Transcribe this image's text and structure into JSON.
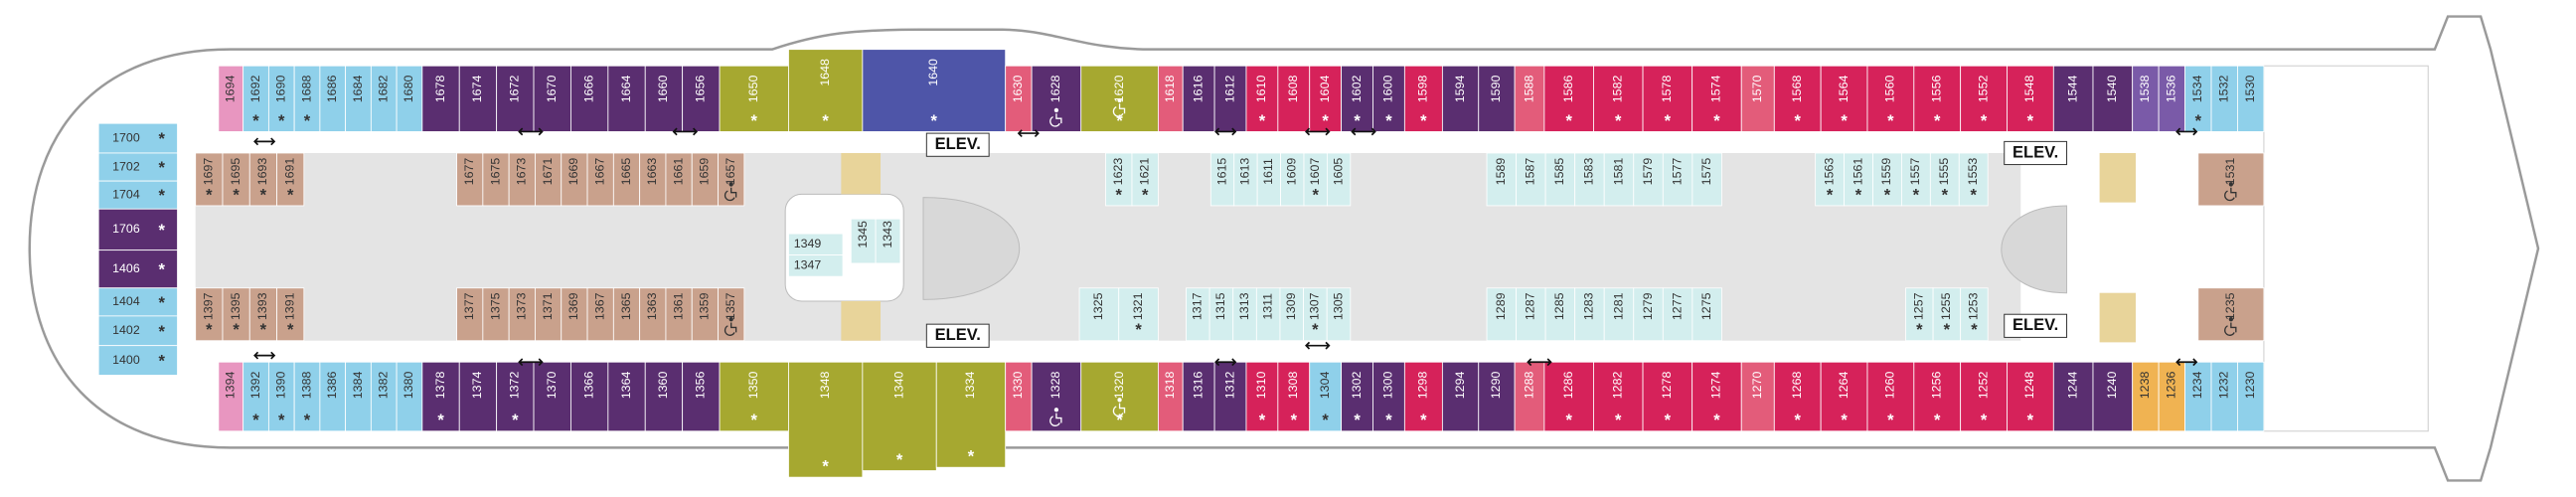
{
  "deck": {
    "top_exterior": [
      {
        "label": "1694",
        "color": "#e896c0"
      },
      {
        "label": "1692",
        "color": "#8fd0ea",
        "note": "*"
      },
      {
        "label": "1690",
        "color": "#8fd0ea",
        "note": "*"
      },
      {
        "label": "1688",
        "color": "#8fd0ea",
        "note": "*"
      },
      {
        "label": "1686",
        "color": "#8fd0ea"
      },
      {
        "label": "1684",
        "color": "#8fd0ea"
      },
      {
        "label": "1682",
        "color": "#8fd0ea"
      },
      {
        "label": "1680",
        "color": "#8fd0ea"
      },
      {
        "label": "1678",
        "color": "#5a2e70"
      },
      {
        "label": "1674",
        "color": "#5a2e70"
      },
      {
        "label": "1672",
        "color": "#5a2e70"
      },
      {
        "label": "1670",
        "color": "#5a2e70"
      },
      {
        "label": "1666",
        "color": "#5a2e70"
      },
      {
        "label": "1664",
        "color": "#5a2e70"
      },
      {
        "label": "1660",
        "color": "#5a2e70"
      },
      {
        "label": "1656",
        "color": "#5a2e70"
      },
      {
        "label": "1650",
        "color": "#a6a830",
        "note": "*"
      },
      {
        "label": "1648",
        "color": "#a6a830",
        "note": "*"
      },
      {
        "label": "1640",
        "color": "#4e55a8",
        "note": "*"
      },
      {
        "label": "1630",
        "color": "#e35c7a"
      },
      {
        "label": "1628",
        "color": "#5a2e70",
        "accessible": true
      },
      {
        "label": "1620",
        "color": "#a6a830",
        "note": "*",
        "accessible": true
      },
      {
        "label": "1618",
        "color": "#e35c7a"
      },
      {
        "label": "1616",
        "color": "#5a2e70"
      },
      {
        "label": "1612",
        "color": "#5a2e70"
      },
      {
        "label": "1610",
        "color": "#d6225a",
        "note": "*"
      },
      {
        "label": "1608",
        "color": "#d6225a"
      },
      {
        "label": "1604",
        "color": "#d6225a",
        "note": "*"
      },
      {
        "label": "1602",
        "color": "#5a2e70",
        "note": "*"
      },
      {
        "label": "1600",
        "color": "#5a2e70",
        "note": "*"
      },
      {
        "label": "1598",
        "color": "#d6225a",
        "note": "*"
      },
      {
        "label": "1594",
        "color": "#5a2e70"
      },
      {
        "label": "1590",
        "color": "#5a2e70"
      },
      {
        "label": "1588",
        "color": "#e35c7a"
      },
      {
        "label": "1586",
        "color": "#d6225a",
        "note": "*"
      },
      {
        "label": "1582",
        "color": "#d6225a",
        "note": "*"
      },
      {
        "label": "1578",
        "color": "#d6225a",
        "note": "*"
      },
      {
        "label": "1574",
        "color": "#d6225a",
        "note": "*"
      },
      {
        "label": "1570",
        "color": "#e35c7a"
      },
      {
        "label": "1568",
        "color": "#d6225a",
        "note": "*"
      },
      {
        "label": "1564",
        "color": "#d6225a",
        "note": "*"
      },
      {
        "label": "1560",
        "color": "#d6225a",
        "note": "*"
      },
      {
        "label": "1556",
        "color": "#d6225a",
        "note": "*"
      },
      {
        "label": "1552",
        "color": "#d6225a",
        "note": "*"
      },
      {
        "label": "1548",
        "color": "#d6225a",
        "note": "*"
      },
      {
        "label": "1544",
        "color": "#5a2e70"
      },
      {
        "label": "1540",
        "color": "#5a2e70"
      },
      {
        "label": "1538",
        "color": "#7a5aa8"
      },
      {
        "label": "1536",
        "color": "#7a5aa8"
      },
      {
        "label": "1534",
        "color": "#8fd0ea",
        "note": "*"
      },
      {
        "label": "1532",
        "color": "#8fd0ea"
      },
      {
        "label": "1530",
        "color": "#8fd0ea"
      }
    ],
    "top_interior": [
      {
        "label": "1697",
        "color": "#c9a18c",
        "note": "*"
      },
      {
        "label": "1695",
        "color": "#c9a18c",
        "note": "*"
      },
      {
        "label": "1693",
        "color": "#c9a18c",
        "note": "*"
      },
      {
        "label": "1691",
        "color": "#c9a18c",
        "note": "*"
      },
      {
        "label": "1677",
        "color": "#c9a18c"
      },
      {
        "label": "1675",
        "color": "#c9a18c"
      },
      {
        "label": "1673",
        "color": "#c9a18c"
      },
      {
        "label": "1671",
        "color": "#c9a18c"
      },
      {
        "label": "1669",
        "color": "#c9a18c"
      },
      {
        "label": "1667",
        "color": "#c9a18c"
      },
      {
        "label": "1665",
        "color": "#c9a18c"
      },
      {
        "label": "1663",
        "color": "#c9a18c"
      },
      {
        "label": "1661",
        "color": "#c9a18c"
      },
      {
        "label": "1659",
        "color": "#c9a18c"
      },
      {
        "label": "1657",
        "color": "#c9a18c",
        "accessible": true
      },
      {
        "label": "1623",
        "color": "#d3eeee",
        "note": "*"
      },
      {
        "label": "1621",
        "color": "#d3eeee",
        "note": "*"
      },
      {
        "label": "1615",
        "color": "#d3eeee"
      },
      {
        "label": "1613",
        "color": "#d3eeee"
      },
      {
        "label": "1611",
        "color": "#d3eeee"
      },
      {
        "label": "1609",
        "color": "#d3eeee"
      },
      {
        "label": "1607",
        "color": "#d3eeee",
        "note": "*"
      },
      {
        "label": "1605",
        "color": "#d3eeee"
      },
      {
        "label": "1589",
        "color": "#d3eeee"
      },
      {
        "label": "1587",
        "color": "#d3eeee"
      },
      {
        "label": "1585",
        "color": "#d3eeee"
      },
      {
        "label": "1583",
        "color": "#d3eeee"
      },
      {
        "label": "1581",
        "color": "#d3eeee"
      },
      {
        "label": "1579",
        "color": "#d3eeee"
      },
      {
        "label": "1577",
        "color": "#d3eeee"
      },
      {
        "label": "1575",
        "color": "#d3eeee"
      },
      {
        "label": "1563",
        "color": "#d3eeee",
        "note": "*"
      },
      {
        "label": "1561",
        "color": "#d3eeee",
        "note": "*"
      },
      {
        "label": "1559",
        "color": "#d3eeee",
        "note": "*"
      },
      {
        "label": "1557",
        "color": "#d3eeee",
        "note": "*"
      },
      {
        "label": "1555",
        "color": "#d3eeee",
        "note": "*"
      },
      {
        "label": "1553",
        "color": "#d3eeee",
        "note": "*"
      },
      {
        "label": "1531",
        "color": "#c9a18c",
        "accessible": true
      }
    ],
    "bottom_interior": [
      {
        "label": "1397",
        "color": "#c9a18c",
        "note": "*"
      },
      {
        "label": "1395",
        "color": "#c9a18c",
        "note": "*"
      },
      {
        "label": "1393",
        "color": "#c9a18c",
        "note": "*"
      },
      {
        "label": "1391",
        "color": "#c9a18c",
        "note": "*"
      },
      {
        "label": "1377",
        "color": "#c9a18c"
      },
      {
        "label": "1375",
        "color": "#c9a18c"
      },
      {
        "label": "1373",
        "color": "#c9a18c"
      },
      {
        "label": "1371",
        "color": "#c9a18c"
      },
      {
        "label": "1369",
        "color": "#c9a18c"
      },
      {
        "label": "1367",
        "color": "#c9a18c"
      },
      {
        "label": "1365",
        "color": "#c9a18c"
      },
      {
        "label": "1363",
        "color": "#c9a18c"
      },
      {
        "label": "1361",
        "color": "#c9a18c"
      },
      {
        "label": "1359",
        "color": "#c9a18c"
      },
      {
        "label": "1357",
        "color": "#c9a18c",
        "accessible": true
      },
      {
        "label": "1325",
        "color": "#d3eeee"
      },
      {
        "label": "1321",
        "color": "#d3eeee",
        "note": "*"
      },
      {
        "label": "1317",
        "color": "#d3eeee"
      },
      {
        "label": "1315",
        "color": "#d3eeee"
      },
      {
        "label": "1313",
        "color": "#d3eeee"
      },
      {
        "label": "1311",
        "color": "#d3eeee"
      },
      {
        "label": "1309",
        "color": "#d3eeee"
      },
      {
        "label": "1307",
        "color": "#d3eeee",
        "note": "*"
      },
      {
        "label": "1305",
        "color": "#d3eeee"
      },
      {
        "label": "1289",
        "color": "#d3eeee"
      },
      {
        "label": "1287",
        "color": "#d3eeee"
      },
      {
        "label": "1285",
        "color": "#d3eeee"
      },
      {
        "label": "1283",
        "color": "#d3eeee"
      },
      {
        "label": "1281",
        "color": "#d3eeee"
      },
      {
        "label": "1279",
        "color": "#d3eeee"
      },
      {
        "label": "1277",
        "color": "#d3eeee"
      },
      {
        "label": "1275",
        "color": "#d3eeee"
      },
      {
        "label": "1257",
        "color": "#d3eeee",
        "note": "*"
      },
      {
        "label": "1255",
        "color": "#d3eeee",
        "note": "*"
      },
      {
        "label": "1253",
        "color": "#d3eeee",
        "note": "*"
      },
      {
        "label": "1235",
        "color": "#c9a18c",
        "accessible": true
      }
    ],
    "bottom_exterior": [
      {
        "label": "1394",
        "color": "#e896c0"
      },
      {
        "label": "1392",
        "color": "#8fd0ea",
        "note": "*"
      },
      {
        "label": "1390",
        "color": "#8fd0ea",
        "note": "*"
      },
      {
        "label": "1388",
        "color": "#8fd0ea",
        "note": "*"
      },
      {
        "label": "1386",
        "color": "#8fd0ea"
      },
      {
        "label": "1384",
        "color": "#8fd0ea"
      },
      {
        "label": "1382",
        "color": "#8fd0ea"
      },
      {
        "label": "1380",
        "color": "#8fd0ea"
      },
      {
        "label": "1378",
        "color": "#5a2e70",
        "note": "*"
      },
      {
        "label": "1374",
        "color": "#5a2e70"
      },
      {
        "label": "1372",
        "color": "#5a2e70",
        "note": "*"
      },
      {
        "label": "1370",
        "color": "#5a2e70"
      },
      {
        "label": "1366",
        "color": "#5a2e70"
      },
      {
        "label": "1364",
        "color": "#5a2e70"
      },
      {
        "label": "1360",
        "color": "#5a2e70"
      },
      {
        "label": "1356",
        "color": "#5a2e70"
      },
      {
        "label": "1350",
        "color": "#a6a830",
        "note": "*"
      },
      {
        "label": "1348",
        "color": "#a6a830",
        "note": "*"
      },
      {
        "label": "1340",
        "color": "#a6a830",
        "note": "*"
      },
      {
        "label": "1334",
        "color": "#a6a830",
        "note": "*"
      },
      {
        "label": "1330",
        "color": "#e35c7a"
      },
      {
        "label": "1328",
        "color": "#5a2e70",
        "accessible": true
      },
      {
        "label": "1320",
        "color": "#a6a830",
        "note": "*",
        "accessible": true
      },
      {
        "label": "1318",
        "color": "#e35c7a"
      },
      {
        "label": "1316",
        "color": "#5a2e70"
      },
      {
        "label": "1312",
        "color": "#5a2e70"
      },
      {
        "label": "1310",
        "color": "#d6225a",
        "note": "*"
      },
      {
        "label": "1308",
        "color": "#d6225a",
        "note": "*"
      },
      {
        "label": "1304",
        "color": "#8fd0ea",
        "note": "*"
      },
      {
        "label": "1302",
        "color": "#5a2e70",
        "note": "*"
      },
      {
        "label": "1300",
        "color": "#5a2e70",
        "note": "*"
      },
      {
        "label": "1298",
        "color": "#d6225a",
        "note": "*"
      },
      {
        "label": "1294",
        "color": "#5a2e70"
      },
      {
        "label": "1290",
        "color": "#5a2e70"
      },
      {
        "label": "1288",
        "color": "#e35c7a"
      },
      {
        "label": "1286",
        "color": "#d6225a",
        "note": "*"
      },
      {
        "label": "1282",
        "color": "#d6225a",
        "note": "*"
      },
      {
        "label": "1278",
        "color": "#d6225a",
        "note": "*"
      },
      {
        "label": "1274",
        "color": "#d6225a",
        "note": "*"
      },
      {
        "label": "1270",
        "color": "#e35c7a"
      },
      {
        "label": "1268",
        "color": "#d6225a",
        "note": "*"
      },
      {
        "label": "1264",
        "color": "#d6225a",
        "note": "*"
      },
      {
        "label": "1260",
        "color": "#d6225a",
        "note": "*"
      },
      {
        "label": "1256",
        "color": "#d6225a",
        "note": "*"
      },
      {
        "label": "1252",
        "color": "#d6225a",
        "note": "*"
      },
      {
        "label": "1248",
        "color": "#d6225a",
        "note": "*"
      },
      {
        "label": "1244",
        "color": "#5a2e70"
      },
      {
        "label": "1240",
        "color": "#5a2e70"
      },
      {
        "label": "1238",
        "color": "#f0b352"
      },
      {
        "label": "1236",
        "color": "#f0b352"
      },
      {
        "label": "1234",
        "color": "#8fd0ea"
      },
      {
        "label": "1232",
        "color": "#8fd0ea"
      },
      {
        "label": "1230",
        "color": "#8fd0ea"
      }
    ],
    "forward": [
      {
        "label": "1700",
        "color": "#8fd0ea",
        "note": "*"
      },
      {
        "label": "1702",
        "color": "#8fd0ea",
        "note": "*"
      },
      {
        "label": "1704",
        "color": "#8fd0ea",
        "note": "*"
      },
      {
        "label": "1706",
        "color": "#5a2e70",
        "note": "*"
      },
      {
        "label": "1406",
        "color": "#5a2e70",
        "note": "*"
      },
      {
        "label": "1404",
        "color": "#8fd0ea",
        "note": "*"
      },
      {
        "label": "1402",
        "color": "#8fd0ea",
        "note": "*"
      },
      {
        "label": "1400",
        "color": "#8fd0ea",
        "note": "*"
      }
    ],
    "center": [
      {
        "label": "1349",
        "color": "#d3eeee"
      },
      {
        "label": "1347",
        "color": "#d3eeee"
      },
      {
        "label": "1345",
        "color": "#d3eeee"
      },
      {
        "label": "1343",
        "color": "#d3eeee"
      }
    ],
    "elevators": [
      "ELEV.",
      "ELEV.",
      "ELEV.",
      "ELEV."
    ]
  }
}
